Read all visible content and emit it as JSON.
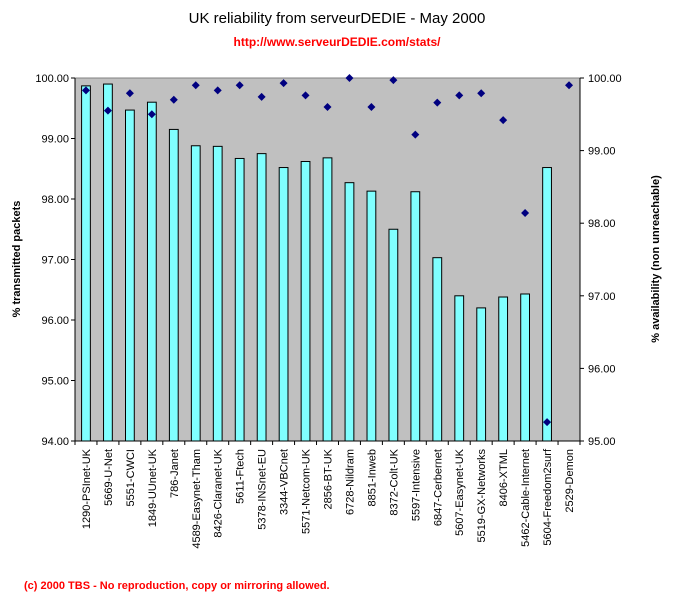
{
  "header": {
    "title": "UK reliability from serveurDEDIE - May 2000",
    "subtitle": "http://www.serveurDEDIE.com/stats/"
  },
  "footer": {
    "copyright": "(c) 2000 TBS - No reproduction, copy or mirroring allowed."
  },
  "colors": {
    "plot_bg": "#c0c0c0",
    "bar_fill": "#80ffff",
    "bar_stroke": "#000000",
    "marker": "#000080",
    "accent": "#ff0000"
  },
  "chart_data": {
    "type": "bar",
    "title": "UK reliability from serveurDEDIE - May 2000",
    "subtitle": "http://www.serveurDEDIE.com/stats/",
    "categories": [
      "1290-PSInet-UK",
      "5669-U-Net",
      "5551-CWCI",
      "1849-UUnet-UK",
      "786-Janet",
      "4589-Easynet-Tham",
      "8426-Claranet-UK",
      "5611-Ftech",
      "5378-INSnet-EU",
      "3344-VBCnet",
      "5571-Netcom-UK",
      "2856-BT-UK",
      "6728-Nildram",
      "8851-Inweb",
      "8372-Colt-UK",
      "5597-Intensive",
      "6847-Cerbernet",
      "5607-Easynet-UK",
      "5519-GX-Networks",
      "8406-XTML",
      "5462-Cable-Internet",
      "5604-Freedom2surf",
      "2529-Demon"
    ],
    "series": [
      {
        "name": "",
        "axis": "left",
        "type": "bar",
        "values": [
          99.87,
          99.9,
          99.47,
          99.6,
          99.15,
          98.88,
          98.87,
          98.67,
          98.75,
          98.52,
          98.62,
          98.68,
          98.27,
          98.13,
          97.5,
          98.12,
          97.03,
          96.4,
          96.2,
          96.38,
          96.43,
          98.52,
          null
        ]
      },
      {
        "name": "",
        "axis": "right",
        "type": "scatter",
        "values": [
          99.83,
          99.55,
          99.79,
          99.5,
          99.7,
          99.9,
          99.83,
          99.9,
          99.74,
          99.93,
          99.76,
          99.6,
          100.0,
          99.6,
          99.97,
          99.22,
          99.66,
          99.76,
          99.79,
          99.42,
          98.14,
          95.26,
          99.9
        ]
      }
    ],
    "ylabel": "% transmitted packets",
    "ylim": [
      94,
      100
    ],
    "yticks": [
      "94.00",
      "95.00",
      "96.00",
      "97.00",
      "98.00",
      "99.00",
      "100.00"
    ],
    "y2label": "% availability (non unreachable)",
    "y2lim": [
      95,
      100
    ],
    "y2ticks": [
      "95.00",
      "96.00",
      "97.00",
      "98.00",
      "99.00",
      "100.00"
    ],
    "grid": false,
    "legend": "none"
  }
}
